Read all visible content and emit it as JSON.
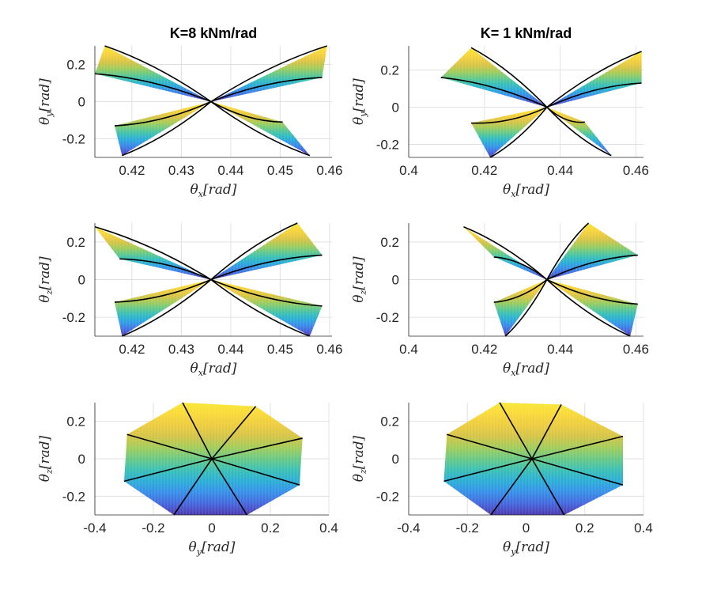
{
  "colors": {
    "gradient": [
      "#3e26a8",
      "#2f6ff0",
      "#16a3d9",
      "#2ec0a3",
      "#8ac951",
      "#d8be33",
      "#f9cf2b",
      "#f8e51f"
    ],
    "curve": "#000000",
    "grid": "#e0e0e0",
    "axis": "#262626"
  },
  "chart_data": [
    {
      "type": "surface-projection",
      "title": "K=8 kNm/rad",
      "xlabel": {
        "sym": "θ",
        "sub": "x",
        "unit": "[rad]"
      },
      "ylabel": {
        "sym": "θ",
        "sub": "y",
        "unit": "[rad]"
      },
      "xlim": [
        0.4125,
        0.4605
      ],
      "ylim": [
        -0.3,
        0.3
      ],
      "xticks": [
        0.42,
        0.43,
        0.44,
        0.45,
        0.46
      ],
      "xtick_labels": [
        "0.42",
        "0.43",
        "0.44",
        "0.45",
        "0.46"
      ],
      "yticks": [
        -0.2,
        0,
        0.2
      ],
      "ytick_labels": [
        "-0.2",
        "0",
        "0.2"
      ],
      "center": [
        0.436,
        0.0
      ],
      "endpoints": [
        [
          0.4145,
          0.3
        ],
        [
          0.4595,
          0.3
        ],
        [
          0.4125,
          0.15
        ],
        [
          0.4585,
          0.13
        ],
        [
          0.4165,
          -0.13
        ],
        [
          0.4505,
          -0.11
        ],
        [
          0.418,
          -0.29
        ],
        [
          0.456,
          -0.29
        ]
      ],
      "color_by": "y"
    },
    {
      "type": "surface-projection",
      "title": "K= 1 kNm/rad",
      "xlabel": {
        "sym": "θ",
        "sub": "x",
        "unit": "[rad]"
      },
      "ylabel": {
        "sym": "θ",
        "sub": "y",
        "unit": "[rad]"
      },
      "xlim": [
        0.4,
        0.462
      ],
      "ylim": [
        -0.27,
        0.33
      ],
      "xticks": [
        0.4,
        0.42,
        0.44,
        0.46
      ],
      "xtick_labels": [
        "0.4",
        "0.42",
        "0.44",
        "0.46"
      ],
      "yticks": [
        -0.2,
        0,
        0.2
      ],
      "ytick_labels": [
        "-0.2",
        "0",
        "0.2"
      ],
      "center": [
        0.4365,
        0.0
      ],
      "endpoints": [
        [
          0.4165,
          0.32
        ],
        [
          0.4615,
          0.3
        ],
        [
          0.4085,
          0.16
        ],
        [
          0.4615,
          0.13
        ],
        [
          0.4165,
          -0.085
        ],
        [
          0.4465,
          -0.08
        ],
        [
          0.4215,
          -0.27
        ],
        [
          0.4535,
          -0.26
        ]
      ],
      "color_by": "y"
    },
    {
      "type": "surface-projection",
      "title": "",
      "xlabel": {
        "sym": "θ",
        "sub": "x",
        "unit": "[rad]"
      },
      "ylabel": {
        "sym": "θ",
        "sub": "z",
        "unit": "[rad]"
      },
      "xlim": [
        0.4125,
        0.4605
      ],
      "ylim": [
        -0.3,
        0.3
      ],
      "xticks": [
        0.42,
        0.43,
        0.44,
        0.45,
        0.46
      ],
      "xtick_labels": [
        "0.42",
        "0.43",
        "0.44",
        "0.45",
        "0.46"
      ],
      "yticks": [
        -0.2,
        0,
        0.2
      ],
      "ytick_labels": [
        "-0.2",
        "0",
        "0.2"
      ],
      "center": [
        0.436,
        0.0
      ],
      "endpoints": [
        [
          0.4125,
          0.28
        ],
        [
          0.4535,
          0.3
        ],
        [
          0.4175,
          0.11
        ],
        [
          0.4585,
          0.13
        ],
        [
          0.4165,
          -0.12
        ],
        [
          0.4585,
          -0.14
        ],
        [
          0.418,
          -0.3
        ],
        [
          0.456,
          -0.3
        ]
      ],
      "color_by": "z"
    },
    {
      "type": "surface-projection",
      "title": "",
      "xlabel": {
        "sym": "θ",
        "sub": "x",
        "unit": "[rad]"
      },
      "ylabel": {
        "sym": "θ",
        "sub": "z",
        "unit": "[rad]"
      },
      "xlim": [
        0.4,
        0.462
      ],
      "ylim": [
        -0.3,
        0.3
      ],
      "xticks": [
        0.4,
        0.42,
        0.44,
        0.46
      ],
      "xtick_labels": [
        "0.4",
        "0.42",
        "0.44",
        "0.46"
      ],
      "yticks": [
        -0.2,
        0,
        0.2
      ],
      "ytick_labels": [
        "-0.2",
        "0",
        "0.2"
      ],
      "center": [
        0.4365,
        0.0
      ],
      "endpoints": [
        [
          0.4145,
          0.28
        ],
        [
          0.4475,
          0.3
        ],
        [
          0.4225,
          0.12
        ],
        [
          0.4605,
          0.13
        ],
        [
          0.4225,
          -0.12
        ],
        [
          0.4605,
          -0.13
        ],
        [
          0.4255,
          -0.3
        ],
        [
          0.4585,
          -0.3
        ]
      ],
      "color_by": "z"
    },
    {
      "type": "surface-projection",
      "title": "",
      "xlabel": {
        "sym": "θ",
        "sub": "y",
        "unit": "[rad]"
      },
      "ylabel": {
        "sym": "θ",
        "sub": "z",
        "unit": "[rad]"
      },
      "xlim": [
        -0.4,
        0.4
      ],
      "ylim": [
        -0.3,
        0.3
      ],
      "xticks": [
        -0.4,
        -0.2,
        0,
        0.2,
        0.4
      ],
      "xtick_labels": [
        "-0.4",
        "-0.2",
        "0",
        "0.2",
        "0.4"
      ],
      "yticks": [
        -0.2,
        0,
        0.2
      ],
      "ytick_labels": [
        "-0.2",
        "0",
        "0.2"
      ],
      "center": [
        0.0,
        0.0
      ],
      "endpoints": [
        [
          -0.1,
          0.3
        ],
        [
          0.15,
          0.28
        ],
        [
          -0.29,
          0.13
        ],
        [
          0.31,
          0.11
        ],
        [
          -0.3,
          -0.12
        ],
        [
          0.3,
          -0.14
        ],
        [
          -0.13,
          -0.3
        ],
        [
          0.12,
          -0.3
        ]
      ],
      "color_by": "z"
    },
    {
      "type": "surface-projection",
      "title": "",
      "xlabel": {
        "sym": "θ",
        "sub": "y",
        "unit": "[rad]"
      },
      "ylabel": {
        "sym": "θ",
        "sub": "z",
        "unit": "[rad]"
      },
      "xlim": [
        -0.4,
        0.4
      ],
      "ylim": [
        -0.3,
        0.3
      ],
      "xticks": [
        -0.4,
        -0.2,
        0,
        0.2,
        0.4
      ],
      "xtick_labels": [
        "-0.4",
        "-0.2",
        "0",
        "0.2",
        "0.4"
      ],
      "yticks": [
        -0.2,
        0,
        0.2
      ],
      "ytick_labels": [
        "-0.2",
        "0",
        "0.2"
      ],
      "center": [
        0.02,
        0.0
      ],
      "endpoints": [
        [
          -0.09,
          0.3
        ],
        [
          0.12,
          0.29
        ],
        [
          -0.27,
          0.13
        ],
        [
          0.33,
          0.12
        ],
        [
          -0.28,
          -0.12
        ],
        [
          0.33,
          -0.14
        ],
        [
          -0.12,
          -0.3
        ],
        [
          0.13,
          -0.3
        ]
      ],
      "color_by": "z"
    }
  ]
}
